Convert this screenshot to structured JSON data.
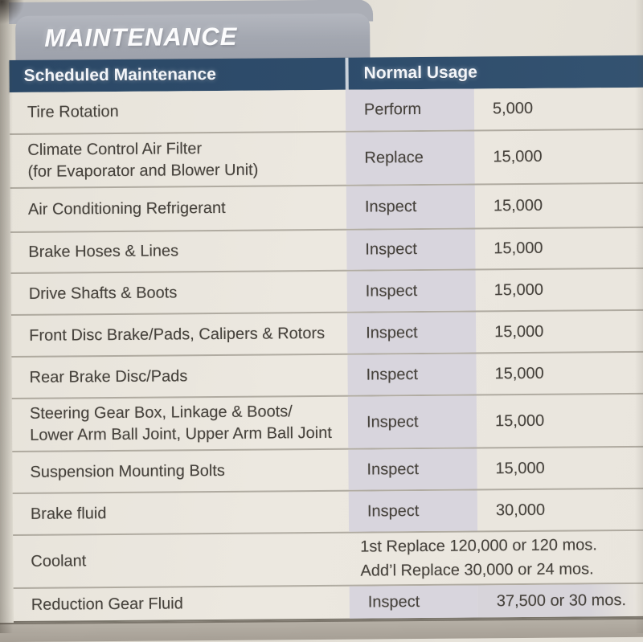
{
  "header": {
    "tab_title": "MAINTENANCE",
    "col_scheduled": "Scheduled Maintenance",
    "col_usage": "Normal Usage"
  },
  "table": {
    "rows": [
      {
        "item": "Tire Rotation",
        "action": "Perform",
        "value": "5,000"
      },
      {
        "item": "Climate Control Air Filter\n(for Evaporator and Blower Unit)",
        "action": "Replace",
        "value": "15,000"
      },
      {
        "item": "Air Conditioning Refrigerant",
        "action": "Inspect",
        "value": "15,000"
      },
      {
        "item": "Brake Hoses & Lines",
        "action": "Inspect",
        "value": "15,000"
      },
      {
        "item": "Drive Shafts & Boots",
        "action": "Inspect",
        "value": "15,000"
      },
      {
        "item": "Front Disc Brake/Pads, Calipers & Rotors",
        "action": "Inspect",
        "value": "15,000"
      },
      {
        "item": "Rear Brake Disc/Pads",
        "action": "Inspect",
        "value": "15,000"
      },
      {
        "item": "Steering Gear Box, Linkage & Boots/\nLower Arm Ball Joint, Upper Arm Ball Joint",
        "action": "Inspect",
        "value": "15,000"
      },
      {
        "item": "Suspension Mounting Bolts",
        "action": "Inspect",
        "value": "15,000"
      },
      {
        "item": "Brake fluid",
        "action": "Inspect",
        "value": "30,000"
      },
      {
        "item": "Coolant",
        "action": "",
        "value": "1st Replace 120,000 or 120 mos.\nAdd’l Replace 30,000 or 24 mos."
      },
      {
        "item": "Reduction Gear Fluid",
        "action": "Inspect",
        "value": "37,500 or 30 mos."
      }
    ]
  },
  "colors": {
    "header_navy": "#2e4c6b",
    "tab_gray": "#a6a9b2",
    "action_strip": "#d8d5dd",
    "table_bg": "#eae6de",
    "band_gray": "#aea89e",
    "text": "#46423c"
  }
}
